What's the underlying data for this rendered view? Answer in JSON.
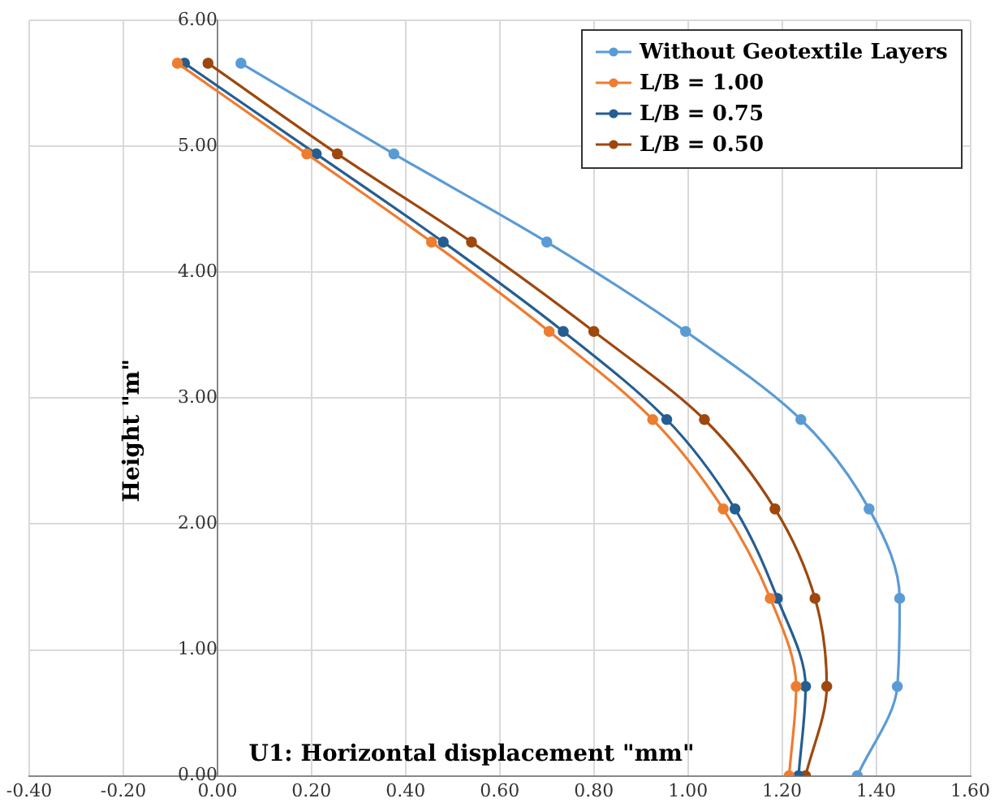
{
  "chart_data": {
    "type": "line",
    "xlabel": "U1: Horizontal displacement \"mm\"",
    "ylabel": "Height \"m\"",
    "xlim": [
      -0.4,
      1.6
    ],
    "xticks": [
      {
        "value": -0.4,
        "label": "-0.40"
      },
      {
        "value": -0.2,
        "label": "-0.20"
      },
      {
        "value": 0,
        "label": "0.00"
      },
      {
        "value": 0.2,
        "label": "0.20"
      },
      {
        "value": 0.4,
        "label": "0.40"
      },
      {
        "value": 0.6,
        "label": "0.60"
      },
      {
        "value": 0.8,
        "label": "0.80"
      },
      {
        "value": 1.0,
        "label": "1.00"
      },
      {
        "value": 1.2,
        "label": "1.20"
      },
      {
        "value": 1.4,
        "label": "1.40"
      },
      {
        "value": 1.6,
        "label": "1.60"
      }
    ],
    "ylim": [
      0,
      6
    ],
    "yticks": [
      {
        "value": 0,
        "label": "0.00"
      },
      {
        "value": 1,
        "label": "1.00"
      },
      {
        "value": 2,
        "label": "2.00"
      },
      {
        "value": 3,
        "label": "3.00"
      },
      {
        "value": 4,
        "label": "4.00"
      },
      {
        "value": 5,
        "label": "5.00"
      },
      {
        "value": 6,
        "label": "6.00"
      }
    ],
    "grid": true,
    "legend": "top right",
    "marker": "circle",
    "line_style": "solid",
    "series": [
      {
        "name": "Without Geotextile Layers",
        "color": "#5b9bd5",
        "x": [
          1.36,
          1.445,
          1.45,
          1.385,
          1.24,
          0.995,
          0.7,
          0.375,
          0.05
        ],
        "values": [
          0,
          0.71,
          1.41,
          2.12,
          2.83,
          3.53,
          4.24,
          4.94,
          5.66
        ]
      },
      {
        "name": "L/B = 1.00",
        "color": "#ed7d31",
        "x": [
          1.215,
          1.23,
          1.175,
          1.075,
          0.925,
          0.705,
          0.455,
          0.19,
          -0.085
        ],
        "values": [
          0,
          0.71,
          1.41,
          2.12,
          2.83,
          3.53,
          4.24,
          4.94,
          5.66
        ]
      },
      {
        "name": "L/B = 0.75",
        "color": "#255e91",
        "x": [
          1.235,
          1.25,
          1.19,
          1.1,
          0.955,
          0.735,
          0.48,
          0.21,
          -0.07
        ],
        "values": [
          0,
          0.71,
          1.41,
          2.12,
          2.83,
          3.53,
          4.24,
          4.94,
          5.66
        ]
      },
      {
        "name": "L/B = 0.50",
        "color": "#9e480e",
        "x": [
          1.25,
          1.295,
          1.27,
          1.185,
          1.035,
          0.8,
          0.54,
          0.255,
          -0.02
        ],
        "values": [
          0,
          0.71,
          1.41,
          2.12,
          2.83,
          3.53,
          4.24,
          4.94,
          5.66
        ]
      }
    ]
  }
}
